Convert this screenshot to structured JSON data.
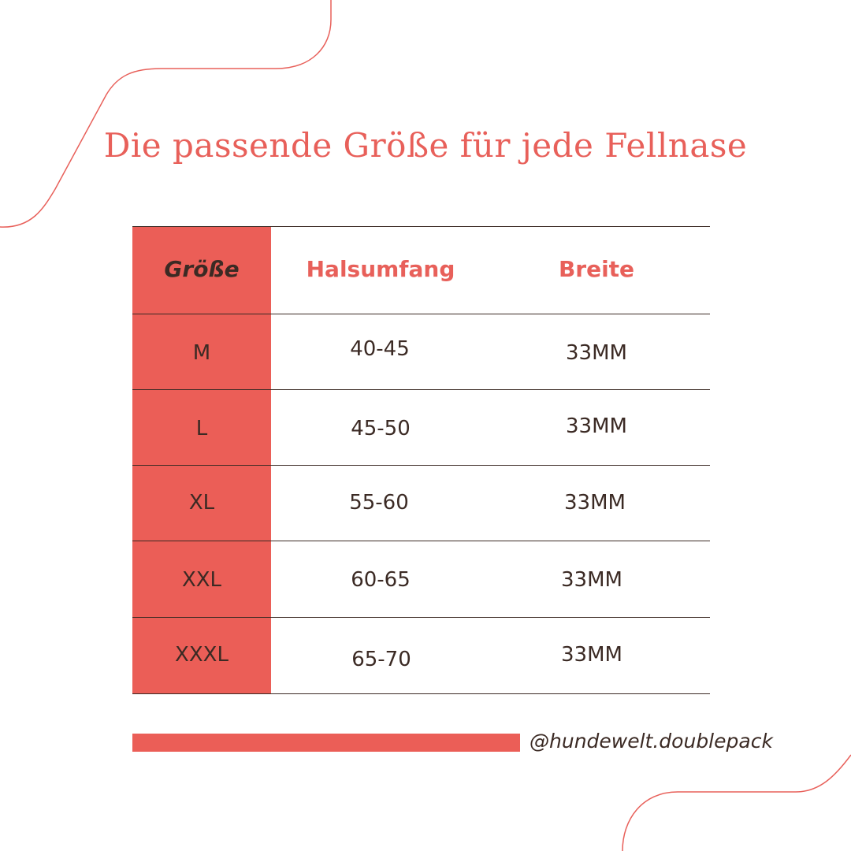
{
  "title": "Die passende Größe für jede Fellnase",
  "colors": {
    "accent": "#eb5e57",
    "heading": "#e8605a",
    "text": "#3b2a24",
    "background": "#ffffff"
  },
  "table": {
    "headers": {
      "size": "Größe",
      "neck": "Halsumfang",
      "width": "Breite"
    },
    "rows": [
      {
        "size": "M",
        "neck": "40-45",
        "width": "33MM"
      },
      {
        "size": "L",
        "neck": "45-50",
        "width": "33MM"
      },
      {
        "size": "XL",
        "neck": "55-60",
        "width": "33MM"
      },
      {
        "size": "XXL",
        "neck": "60-65",
        "width": "33MM"
      },
      {
        "size": "XXXL",
        "neck": "65-70",
        "width": "33MM"
      }
    ]
  },
  "footer": {
    "handle": "@hundewelt.doublepack"
  }
}
